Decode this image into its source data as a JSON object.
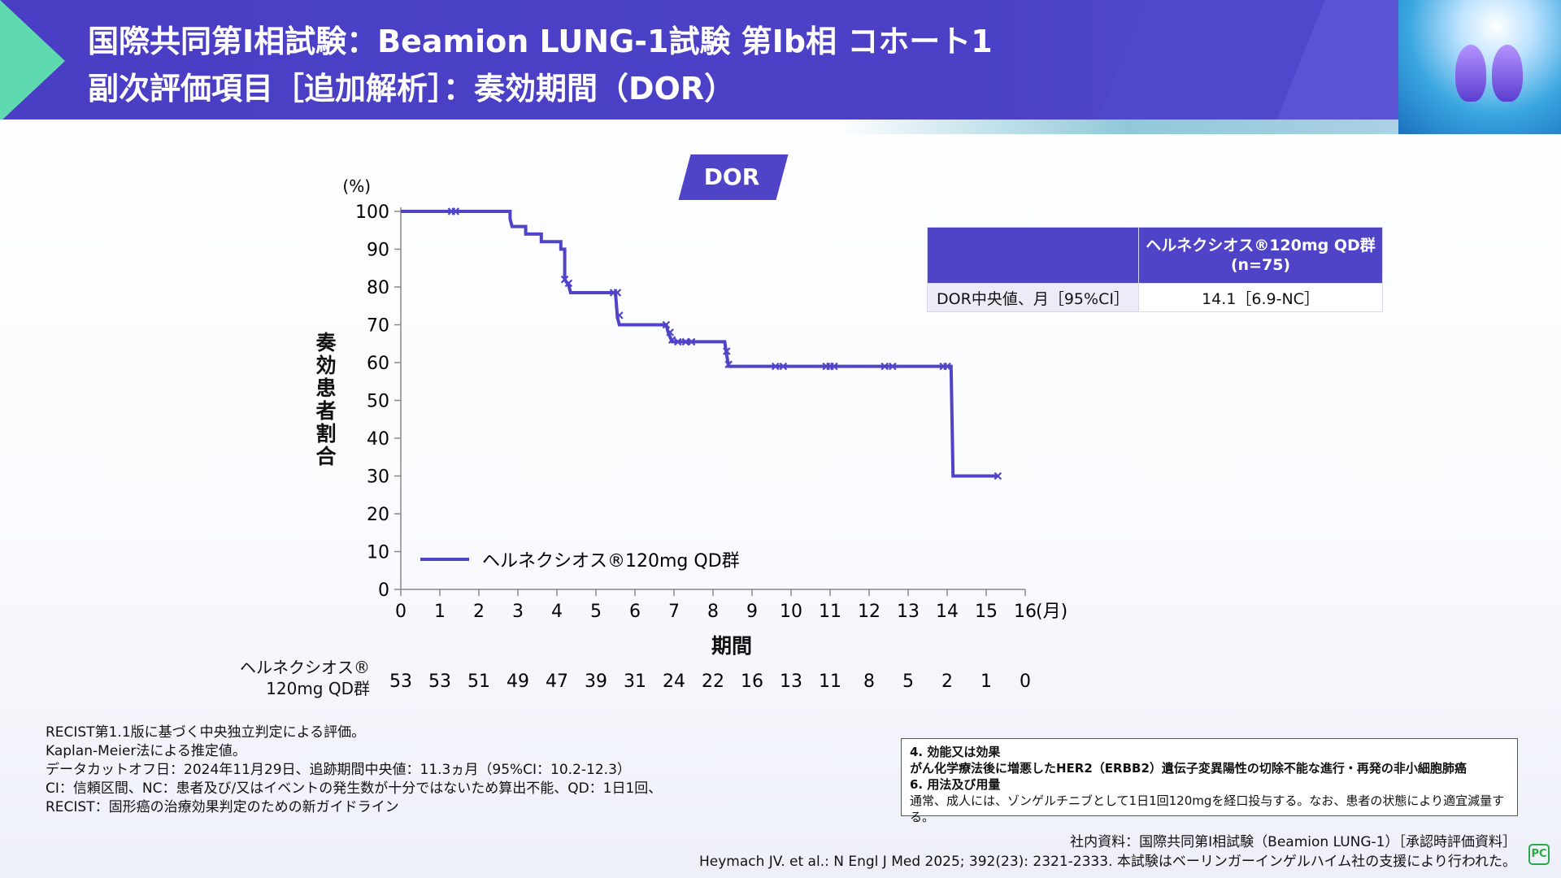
{
  "header": {
    "title_line1": "国際共同第I相試験：Beamion LUNG-1試験 第Ib相 コホート1",
    "title_line2": "副次評価項目［追加解析］：奏効期間（DOR）"
  },
  "badge": "DOR",
  "colors": {
    "accent": "#4f44c8",
    "header": "#4a3fc4",
    "arrow": "#5fd9b0"
  },
  "chart_data": {
    "type": "line",
    "subtype": "kaplan-meier",
    "ylabel": "奏効患者割合",
    "yunit": "(%)",
    "xlabel": "期間",
    "xunit": "(月)",
    "xlim": [
      0,
      16
    ],
    "ylim": [
      0,
      100
    ],
    "xticks": [
      0,
      1,
      2,
      3,
      4,
      5,
      6,
      7,
      8,
      9,
      10,
      11,
      12,
      13,
      14,
      15,
      16
    ],
    "yticks": [
      0,
      10,
      20,
      30,
      40,
      50,
      60,
      70,
      80,
      90,
      100
    ],
    "legend": "bottom-left",
    "series": [
      {
        "name": "ヘルネクシオス®120mg QD群",
        "color": "#4f44c8",
        "steps": [
          [
            0,
            100
          ],
          [
            2.8,
            100
          ],
          [
            2.8,
            98
          ],
          [
            2.85,
            96
          ],
          [
            3.2,
            96
          ],
          [
            3.2,
            94
          ],
          [
            3.6,
            94
          ],
          [
            3.6,
            92
          ],
          [
            4.1,
            92
          ],
          [
            4.1,
            90
          ],
          [
            4.2,
            90
          ],
          [
            4.2,
            82
          ],
          [
            4.3,
            80.5
          ],
          [
            4.35,
            78.5
          ],
          [
            5.5,
            78.5
          ],
          [
            5.55,
            72
          ],
          [
            5.6,
            70
          ],
          [
            6.8,
            70
          ],
          [
            6.85,
            68
          ],
          [
            6.95,
            65.5
          ],
          [
            8.3,
            65.5
          ],
          [
            8.35,
            62
          ],
          [
            8.4,
            59
          ],
          [
            14.1,
            59
          ],
          [
            14.15,
            30
          ],
          [
            15.3,
            30
          ]
        ],
        "censored": [
          [
            1.3,
            100
          ],
          [
            1.4,
            100
          ],
          [
            4.2,
            82
          ],
          [
            4.3,
            81
          ],
          [
            5.45,
            78.5
          ],
          [
            5.55,
            78.5
          ],
          [
            5.6,
            72.5
          ],
          [
            6.8,
            70
          ],
          [
            6.9,
            68
          ],
          [
            6.95,
            66
          ],
          [
            7.1,
            65.5
          ],
          [
            7.3,
            65.5
          ],
          [
            7.45,
            65.5
          ],
          [
            8.35,
            63
          ],
          [
            8.4,
            59.5
          ],
          [
            9.6,
            59
          ],
          [
            9.8,
            59
          ],
          [
            10.9,
            59
          ],
          [
            11.0,
            59
          ],
          [
            11.1,
            59
          ],
          [
            12.4,
            59
          ],
          [
            12.6,
            59
          ],
          [
            13.9,
            59
          ],
          [
            14.0,
            59
          ],
          [
            15.3,
            30
          ]
        ]
      }
    ],
    "at_risk": {
      "label_line1": "ヘルネクシオス®",
      "label_line2": "120mg QD群",
      "values": [
        53,
        53,
        51,
        49,
        47,
        39,
        31,
        24,
        22,
        16,
        13,
        11,
        8,
        5,
        2,
        1,
        0
      ]
    }
  },
  "table": {
    "header": "ヘルネクシオス®120mg QD群",
    "header_n": "(n=75)",
    "row_label": "DOR中央値、月［95%CI］",
    "row_value": "14.1［6.9-NC］"
  },
  "footnotes": [
    "RECIST第1.1版に基づく中央独立判定による評価。",
    "Kaplan-Meier法による推定値。",
    "データカットオフ日：2024年11月29日、追跡期間中央値：11.3ヵ月（95%CI：10.2-12.3）",
    "CI：信頼区間、NC：患者及び/又はイベントの発生数が十分ではないため算出不能、QD：1日1回、",
    "RECIST：固形癌の治療効果判定のための新ガイドライン"
  ],
  "indication": {
    "h1": "4. 効能又は効果",
    "l1": "がん化学療法後に増悪したHER2（ERBB2）遺伝子変異陽性の切除不能な進行・再発の非小細胞肺癌",
    "h2": "6. 用法及び用量",
    "l2": "通常、成人には、ゾンゲルチニブとして1日1回120mgを経口投与する。なお、患者の状態により適宜減量する。"
  },
  "refs": [
    "社内資料：国際共同第I相試験（Beamion LUNG-1）［承認時評価資料］",
    "Heymach JV. et al.: N Engl J Med 2025; 392(23): 2321-2333. 本試験はベーリンガーインゲルハイム社の支援により行われた。"
  ],
  "logo": "PC"
}
